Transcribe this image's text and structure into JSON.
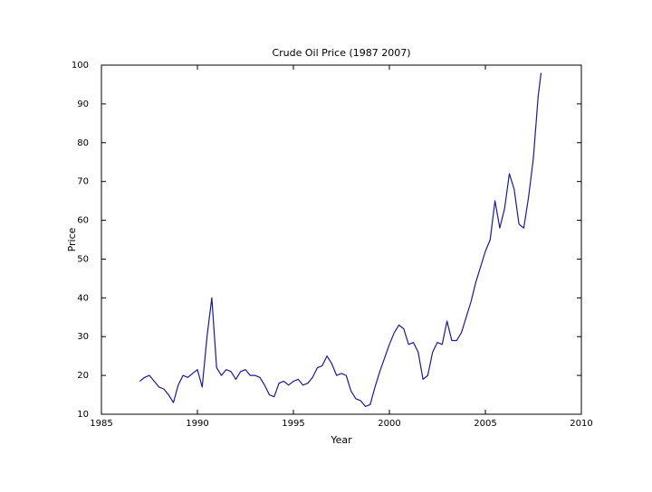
{
  "chart_data": {
    "type": "line",
    "title": "Crude Oil Price (1987 2007)",
    "x_label": "Year",
    "y_label": "Price",
    "x": [
      1987.0,
      1987.25,
      1987.5,
      1987.75,
      1988.0,
      1988.25,
      1988.5,
      1988.75,
      1989.0,
      1989.25,
      1989.5,
      1989.75,
      1990.0,
      1990.25,
      1990.5,
      1990.75,
      1991.0,
      1991.25,
      1991.5,
      1991.75,
      1992.0,
      1992.25,
      1992.5,
      1992.75,
      1993.0,
      1993.25,
      1993.5,
      1993.75,
      1994.0,
      1994.25,
      1994.5,
      1994.75,
      1995.0,
      1995.25,
      1995.5,
      1995.75,
      1996.0,
      1996.25,
      1996.5,
      1996.75,
      1997.0,
      1997.25,
      1997.5,
      1997.75,
      1998.0,
      1998.25,
      1998.5,
      1998.75,
      1999.0,
      1999.25,
      1999.5,
      1999.75,
      2000.0,
      2000.25,
      2000.5,
      2000.75,
      2001.0,
      2001.25,
      2001.5,
      2001.75,
      2002.0,
      2002.25,
      2002.5,
      2002.75,
      2003.0,
      2003.25,
      2003.5,
      2003.75,
      2004.0,
      2004.25,
      2004.5,
      2004.75,
      2005.0,
      2005.25,
      2005.5,
      2005.75,
      2006.0,
      2006.25,
      2006.5,
      2006.75,
      2007.0,
      2007.25,
      2007.5,
      2007.75,
      2007.9
    ],
    "values": [
      18.5,
      19.5,
      20,
      18.5,
      17,
      16.5,
      15,
      13,
      17.5,
      20,
      19.5,
      20.5,
      21.5,
      17,
      30,
      40,
      22,
      20,
      21.5,
      21,
      19,
      21,
      21.5,
      20,
      20,
      19.5,
      17.5,
      15,
      14.5,
      18,
      18.5,
      17.5,
      18.5,
      19,
      17.5,
      18,
      19.5,
      22,
      22.5,
      25,
      23,
      20,
      20.5,
      20,
      16,
      14,
      13.5,
      12,
      12.5,
      17,
      21,
      24.5,
      28,
      31,
      33,
      32,
      28,
      28.5,
      26,
      19,
      20,
      26,
      28.5,
      28,
      34,
      29,
      29,
      31,
      35,
      39,
      44,
      48,
      52,
      55,
      65,
      58,
      63,
      72,
      68,
      59,
      58,
      66,
      76,
      92,
      98
    ],
    "color": "#1a1a9c",
    "xlim": [
      1985,
      2010
    ],
    "xticks": [
      1985,
      1990,
      1995,
      2000,
      2005,
      2010
    ],
    "ylim": [
      10,
      100
    ],
    "yticks": [
      10,
      20,
      30,
      40,
      50,
      60,
      70,
      80,
      90,
      100
    ],
    "grid": false
  }
}
